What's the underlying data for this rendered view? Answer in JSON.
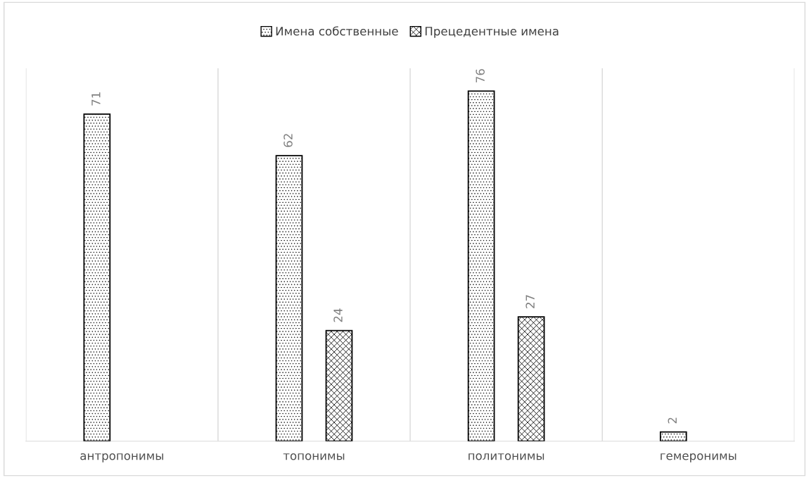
{
  "chart_data": {
    "type": "bar",
    "categories": [
      "антропонимы",
      "топонимы",
      "политонимы",
      "гемеронимы"
    ],
    "series": [
      {
        "name": "Имена собственные",
        "color": "#000000",
        "values": [
          71,
          62,
          76,
          2
        ]
      },
      {
        "name": "Прецедентные имена",
        "color": "#000000",
        "values": [
          null,
          24,
          27,
          null
        ]
      }
    ],
    "data_labels": true,
    "grid": "x",
    "legend": "top"
  }
}
